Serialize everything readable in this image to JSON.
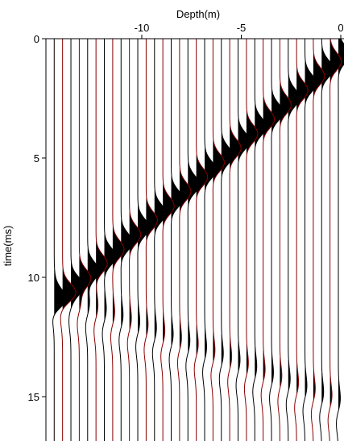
{
  "chart_data": {
    "type": "line",
    "title": "",
    "xlabel": "Depth(m)",
    "ylabel": "time(ms)",
    "x_axis_position": "top",
    "y_axis_direction": "down",
    "xlim": [
      -14.8,
      0.3
    ],
    "ylim": [
      0,
      16.7
    ],
    "x_ticks": [
      {
        "value": -10,
        "label": "-10"
      },
      {
        "value": -5,
        "label": "-5"
      },
      {
        "value": 0,
        "label": "0"
      }
    ],
    "y_ticks": [
      {
        "value": 0,
        "label": "0"
      },
      {
        "value": 5,
        "label": "5"
      },
      {
        "value": 10,
        "label": "10"
      },
      {
        "value": 15,
        "label": "15"
      }
    ],
    "trace_spacing_m": 0.42,
    "num_traces": 35,
    "first_trace_depth_m": 0.0,
    "direct_arrival": {
      "time_at_0m_ms": 0.8,
      "slope_ms_per_m": 0.72
    },
    "reflected_arrival": {
      "time_at_0m_ms": 15.6,
      "slope_ms_per_m": -0.32
    },
    "trace_colors": [
      "#000000",
      "#8b0000"
    ],
    "fill_color": "#000000",
    "grid": false,
    "legend": "none"
  }
}
